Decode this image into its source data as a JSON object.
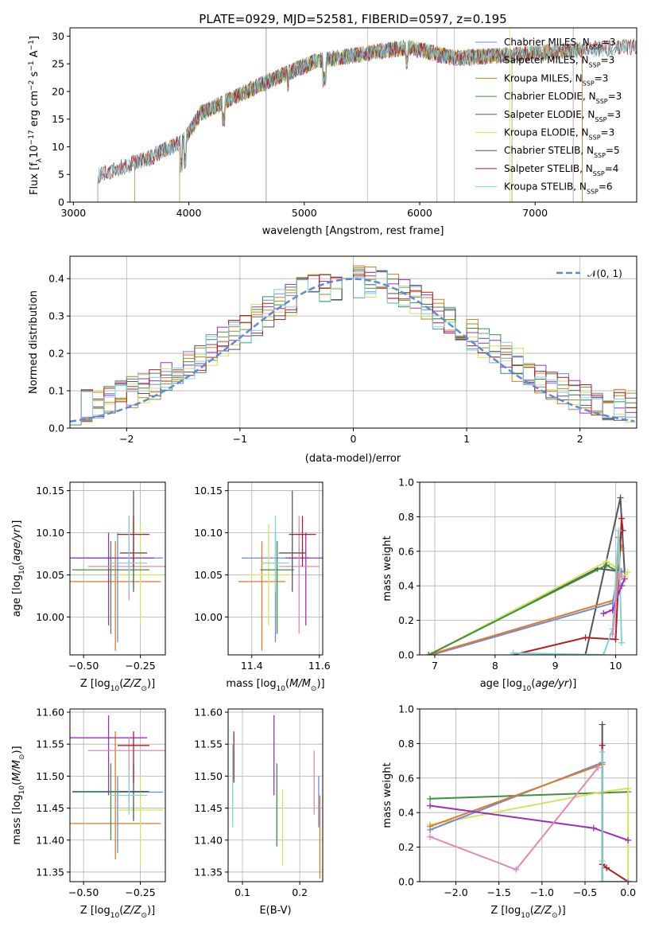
{
  "chart_data": [
    {
      "type": "line",
      "title": "PLATE=0929, MJD=52581, FIBERID=0597, z=0.195",
      "xlabel": "wavelength [Angstrom, rest frame]",
      "ylabel": "Flux [f_λ 10^-17 erg cm^-2 s^-1 A^-1]",
      "xlim": [
        2970,
        7880
      ],
      "ylim": [
        0,
        31.5
      ],
      "xticks": [
        "3000",
        "4000",
        "5000",
        "6000",
        "7000"
      ],
      "yticks": [
        "0",
        "5",
        "10",
        "15",
        "20",
        "25",
        "30"
      ],
      "grid": false,
      "legend_position": "right",
      "series": [
        {
          "name": "Chabrier MILES, N",
          "sub": "SSP",
          "tail": "=3",
          "color": "#6c8ad5",
          "start": 3530,
          "end": 7410
        },
        {
          "name": "Salpeter MILES, N",
          "sub": "SSP",
          "tail": "=3",
          "color": "#e07b26",
          "start": 3530,
          "end": 7410
        },
        {
          "name": "Kroupa MILES, N",
          "sub": "SSP",
          "tail": "=3",
          "color": "#a58a1d",
          "start": 3920,
          "end": 7410
        },
        {
          "name": "Chabrier ELODIE, N",
          "sub": "SSP",
          "tail": "=3",
          "color": "#3f8f3f",
          "start": 3920,
          "end": 6800
        },
        {
          "name": "Salpeter ELODIE, N",
          "sub": "SSP",
          "tail": "=3",
          "color": "#9b30b8",
          "start": 3920,
          "end": 6800
        },
        {
          "name": "Kroupa ELODIE, N",
          "sub": "SSP",
          "tail": "=3",
          "color": "#d5e25a",
          "start": 3920,
          "end": 6800
        },
        {
          "name": "Chabrier STELIB, N",
          "sub": "SSP",
          "tail": "=5",
          "color": "#555555",
          "start": 3210,
          "end": 7880
        },
        {
          "name": "Salpeter STELIB, N",
          "sub": "SSP",
          "tail": "=4",
          "color": "#b01f24",
          "start": 3210,
          "end": 7880
        },
        {
          "name": "Kroupa STELIB, N",
          "sub": "SSP",
          "tail": "=6",
          "color": "#7fd4d8",
          "start": 3210,
          "end": 7880
        }
      ]
    },
    {
      "type": "line",
      "xlabel": "(data-model)/error",
      "ylabel": "Normed distribution",
      "xlim": [
        -2.5,
        2.5
      ],
      "ylim": [
        0,
        0.46
      ],
      "xticks": [
        "−2",
        "−1",
        "0",
        "1",
        "2"
      ],
      "yticks": [
        "0.0",
        "0.1",
        "0.2",
        "0.3",
        "0.4"
      ],
      "grid": true,
      "legend_position": "top-right",
      "reference_curve": {
        "name": "𝒩(0, 1)",
        "color": "#5b8bd6",
        "mean": 0,
        "sigma": 1
      },
      "bin_width": 0.1,
      "series_colors": [
        "#6c8ad5",
        "#e07b26",
        "#a58a1d",
        "#3f8f3f",
        "#9b30b8",
        "#d5e25a",
        "#555555",
        "#b01f24",
        "#7fd4d8"
      ]
    },
    {
      "type": "scatter",
      "xlabel": "Z [log10(Z/Z⊙)]",
      "ylabel": "age  [log10(age/yr)]",
      "xlim": [
        -0.56,
        -0.14
      ],
      "ylim": [
        9.955,
        10.16
      ],
      "xticks": [
        "−0.50",
        "−0.25"
      ],
      "yticks": [
        "10.00",
        "10.05",
        "10.10",
        "10.15"
      ],
      "grid": true,
      "points": [
        {
          "x": -0.35,
          "y": 10.07,
          "xerr": 0.2,
          "ylo": 9.97,
          "yhi": 10.1,
          "color": "#6c8ad5"
        },
        {
          "x": -0.36,
          "y": 10.042,
          "xerr": 0.2,
          "ylo": 9.96,
          "yhi": 10.09,
          "color": "#e07b26"
        },
        {
          "x": -0.25,
          "y": 10.05,
          "xerr": 0.1,
          "ylo": 9.99,
          "yhi": 10.11,
          "color": "#d5e25a"
        },
        {
          "x": -0.38,
          "y": 10.056,
          "xerr": 0.17,
          "ylo": 9.98,
          "yhi": 10.09,
          "color": "#3f8f3f"
        },
        {
          "x": -0.39,
          "y": 10.07,
          "xerr": 0.2,
          "ylo": 9.99,
          "yhi": 10.1,
          "color": "#9b30b8"
        },
        {
          "x": -0.3,
          "y": 10.06,
          "xerr": 0.18,
          "ylo": 10.02,
          "yhi": 10.12,
          "color": "#e089b8"
        },
        {
          "x": -0.28,
          "y": 10.076,
          "xerr": 0.06,
          "ylo": 10.03,
          "yhi": 10.15,
          "color": "#555555"
        },
        {
          "x": -0.28,
          "y": 10.098,
          "xerr": 0.07,
          "ylo": 10.06,
          "yhi": 10.12,
          "color": "#b01f24"
        },
        {
          "x": -0.3,
          "y": 10.064,
          "xerr": 0.08,
          "ylo": 10.03,
          "yhi": 10.12,
          "color": "#7fd4d8"
        }
      ]
    },
    {
      "type": "scatter",
      "xlabel": "mass [log10(M/M⊙)]",
      "xlim": [
        11.33,
        11.61
      ],
      "ylim": [
        9.955,
        10.16
      ],
      "xticks": [
        "11.4",
        "11.6"
      ],
      "yticks": [
        "10.00",
        "10.05",
        "10.10",
        "10.15"
      ],
      "grid": true,
      "points": [
        {
          "x": 11.47,
          "y": 10.07,
          "xerr": 0.1,
          "ylo": 9.97,
          "yhi": 10.1,
          "color": "#6c8ad5"
        },
        {
          "x": 11.43,
          "y": 10.042,
          "xerr": 0.07,
          "ylo": 9.96,
          "yhi": 10.09,
          "color": "#e07b26"
        },
        {
          "x": 11.45,
          "y": 10.05,
          "xerr": 0.07,
          "ylo": 9.99,
          "yhi": 10.11,
          "color": "#d5e25a"
        },
        {
          "x": 11.475,
          "y": 10.056,
          "xerr": 0.05,
          "ylo": 9.98,
          "yhi": 10.09,
          "color": "#3f8f3f"
        },
        {
          "x": 11.56,
          "y": 10.07,
          "xerr": 0.06,
          "ylo": 9.99,
          "yhi": 10.1,
          "color": "#9b30b8"
        },
        {
          "x": 11.54,
          "y": 10.06,
          "xerr": 0.06,
          "ylo": 9.98,
          "yhi": 10.12,
          "color": "#e089b8"
        },
        {
          "x": 11.52,
          "y": 10.076,
          "xerr": 0.04,
          "ylo": 10.03,
          "yhi": 10.15,
          "color": "#555555"
        },
        {
          "x": 11.55,
          "y": 10.098,
          "xerr": 0.04,
          "ylo": 10.06,
          "yhi": 10.12,
          "color": "#b01f24"
        },
        {
          "x": 11.47,
          "y": 10.064,
          "xerr": 0.04,
          "ylo": 10.03,
          "yhi": 10.12,
          "color": "#7fd4d8"
        }
      ]
    },
    {
      "type": "line",
      "xlabel": "age  [log10(age/yr)]",
      "ylabel": "mass weight",
      "xlim": [
        6.75,
        10.35
      ],
      "ylim": [
        0,
        1
      ],
      "xticks": [
        "7",
        "8",
        "9",
        "10"
      ],
      "yticks": [
        "0.0",
        "0.2",
        "0.4",
        "0.6",
        "0.8",
        "1.0"
      ],
      "grid": true,
      "series": [
        {
          "color": "#555555",
          "points": [
            [
              9.5,
              0.0
            ],
            [
              10.08,
              0.91
            ],
            [
              10.15,
              0.48
            ],
            [
              9.7,
              0.5
            ],
            [
              6.9,
              0.0
            ]
          ]
        },
        {
          "color": "#d5e25a",
          "points": [
            [
              6.9,
              0.0
            ],
            [
              9.85,
              0.54
            ],
            [
              10.0,
              0.51
            ],
            [
              10.15,
              0.45
            ],
            [
              10.2,
              0.48
            ]
          ]
        },
        {
          "color": "#6c8ad5",
          "points": [
            [
              6.95,
              0.0
            ],
            [
              9.95,
              0.3
            ],
            [
              10.05,
              0.5
            ],
            [
              10.1,
              0.48
            ]
          ]
        },
        {
          "color": "#e07b26",
          "points": [
            [
              6.9,
              0.0
            ],
            [
              10.0,
              0.32
            ],
            [
              10.05,
              0.68
            ],
            [
              10.1,
              0.62
            ]
          ]
        },
        {
          "color": "#3f8f3f",
          "points": [
            [
              6.9,
              0.0
            ],
            [
              9.85,
              0.52
            ],
            [
              10.0,
              0.49
            ]
          ]
        },
        {
          "color": "#b01f24",
          "points": [
            [
              8.3,
              0.0
            ],
            [
              9.5,
              0.1
            ],
            [
              10.0,
              0.09
            ],
            [
              10.1,
              0.79
            ],
            [
              10.12,
              0.72
            ]
          ]
        },
        {
          "color": "#7fd4d8",
          "points": [
            [
              8.3,
              0.01
            ],
            [
              9.8,
              0.0
            ],
            [
              9.95,
              0.15
            ],
            [
              10.05,
              0.72
            ],
            [
              10.1,
              0.07
            ]
          ]
        },
        {
          "color": "#9b30b8",
          "points": [
            [
              9.8,
              0.24
            ],
            [
              9.95,
              0.26
            ],
            [
              10.1,
              0.4
            ],
            [
              10.15,
              0.44
            ]
          ]
        },
        {
          "color": "#e089b8",
          "points": [
            [
              9.95,
              0.12
            ],
            [
              10.05,
              0.47
            ],
            [
              10.1,
              0.45
            ]
          ]
        }
      ]
    },
    {
      "type": "scatter",
      "xlabel": "Z [log10(Z/Z⊙)]",
      "ylabel": "mass [log10(M/M⊙)]",
      "xlim": [
        -0.56,
        -0.14
      ],
      "ylim": [
        11.335,
        11.605
      ],
      "xticks": [
        "−0.50",
        "−0.25"
      ],
      "yticks": [
        "11.35",
        "11.40",
        "11.45",
        "11.50",
        "11.55",
        "11.60"
      ],
      "grid": true,
      "points": [
        {
          "x": -0.35,
          "y": 11.475,
          "xerr": 0.2,
          "ylo": 11.38,
          "yhi": 11.5,
          "color": "#6c8ad5"
        },
        {
          "x": -0.36,
          "y": 11.426,
          "xerr": 0.2,
          "ylo": 11.37,
          "yhi": 11.57,
          "color": "#e07b26"
        },
        {
          "x": -0.25,
          "y": 11.447,
          "xerr": 0.1,
          "ylo": 11.36,
          "yhi": 11.5,
          "color": "#d5e25a"
        },
        {
          "x": -0.38,
          "y": 11.476,
          "xerr": 0.17,
          "ylo": 11.4,
          "yhi": 11.52,
          "color": "#3f8f3f"
        },
        {
          "x": -0.39,
          "y": 11.56,
          "xerr": 0.17,
          "ylo": 11.47,
          "yhi": 11.595,
          "color": "#9b30b8"
        },
        {
          "x": -0.3,
          "y": 11.54,
          "xerr": 0.18,
          "ylo": 11.45,
          "yhi": 11.56,
          "color": "#e089b8"
        },
        {
          "x": -0.28,
          "y": 11.476,
          "xerr": 0.06,
          "ylo": 11.43,
          "yhi": 11.52,
          "color": "#555555"
        },
        {
          "x": -0.28,
          "y": 11.548,
          "xerr": 0.07,
          "ylo": 11.49,
          "yhi": 11.57,
          "color": "#b01f24"
        },
        {
          "x": -0.3,
          "y": 11.47,
          "xerr": 0.08,
          "ylo": 11.44,
          "yhi": 11.51,
          "color": "#7fd4d8"
        }
      ]
    },
    {
      "type": "scatter",
      "xlabel": "E(B-V)",
      "xlim": [
        0.075,
        0.24
      ],
      "ylim": [
        11.335,
        11.605
      ],
      "xticks": [
        "0.1",
        "0.2"
      ],
      "yticks": [
        "11.35",
        "11.40",
        "11.45",
        "11.50",
        "11.55",
        "11.60"
      ],
      "grid": true,
      "points": [
        {
          "x": 0.083,
          "y": 11.5,
          "ylo": 11.42,
          "yhi": 11.55,
          "color": "#7fd4d8"
        },
        {
          "x": 0.085,
          "y": 11.54,
          "ylo": 11.49,
          "yhi": 11.57,
          "color": "#b01f24"
        },
        {
          "x": 0.155,
          "y": 11.56,
          "ylo": 11.47,
          "yhi": 11.595,
          "color": "#9b30b8"
        },
        {
          "x": 0.16,
          "y": 11.47,
          "ylo": 11.39,
          "yhi": 11.52,
          "color": "#3f8f3f"
        },
        {
          "x": 0.17,
          "y": 11.44,
          "ylo": 11.36,
          "yhi": 11.48,
          "color": "#d5e25a"
        },
        {
          "x": 0.225,
          "y": 11.5,
          "ylo": 11.44,
          "yhi": 11.54,
          "color": "#e089b8"
        },
        {
          "x": 0.233,
          "y": 11.48,
          "ylo": 11.42,
          "yhi": 11.5,
          "color": "#6c8ad5"
        },
        {
          "x": 0.235,
          "y": 11.43,
          "ylo": 11.34,
          "yhi": 11.47,
          "color": "#e07b26"
        }
      ]
    },
    {
      "type": "line",
      "xlabel": "Z [log10(Z/Z⊙)]",
      "ylabel": "mass weight",
      "xlim": [
        -2.42,
        0.1
      ],
      "ylim": [
        0,
        1
      ],
      "xticks": [
        "−2.0",
        "−1.5",
        "−1.0",
        "−0.5",
        "0.0"
      ],
      "yticks": [
        "0.0",
        "0.2",
        "0.4",
        "0.6",
        "0.8",
        "1.0"
      ],
      "grid": true,
      "series": [
        {
          "color": "#3f8f3f",
          "points": [
            [
              -2.3,
              0.48
            ],
            [
              0.0,
              0.52
            ]
          ]
        },
        {
          "color": "#d5e25a",
          "points": [
            [
              -2.3,
              0.33
            ],
            [
              -0.3,
              0.52
            ],
            [
              0.0,
              0.54
            ],
            [
              0.0,
              0.0
            ]
          ]
        },
        {
          "color": "#6c8ad5",
          "points": [
            [
              -2.3,
              0.3
            ],
            [
              -0.3,
              0.69
            ],
            [
              -0.3,
              0.0
            ]
          ]
        },
        {
          "color": "#e07b26",
          "points": [
            [
              -2.3,
              0.32
            ],
            [
              -0.3,
              0.68
            ],
            [
              -0.3,
              0.0
            ]
          ]
        },
        {
          "color": "#9b30b8",
          "points": [
            [
              -2.3,
              0.44
            ],
            [
              -0.4,
              0.31
            ],
            [
              0.0,
              0.24
            ]
          ]
        },
        {
          "color": "#e089b8",
          "points": [
            [
              -2.3,
              0.26
            ],
            [
              -1.3,
              0.07
            ],
            [
              -0.35,
              0.66
            ]
          ]
        },
        {
          "color": "#555555",
          "points": [
            [
              -0.3,
              0.91
            ],
            [
              -0.3,
              0.0
            ],
            [
              0.0,
              0.0
            ]
          ]
        },
        {
          "color": "#b01f24",
          "points": [
            [
              -0.3,
              0.79
            ],
            [
              -0.3,
              0.1
            ],
            [
              -0.25,
              0.08
            ],
            [
              0.0,
              0.0
            ]
          ]
        },
        {
          "color": "#7fd4d8",
          "points": [
            [
              -0.3,
              0.75
            ],
            [
              -0.3,
              0.12
            ],
            [
              -0.3,
              0.0
            ],
            [
              0.0,
              0.0
            ]
          ]
        }
      ]
    }
  ]
}
